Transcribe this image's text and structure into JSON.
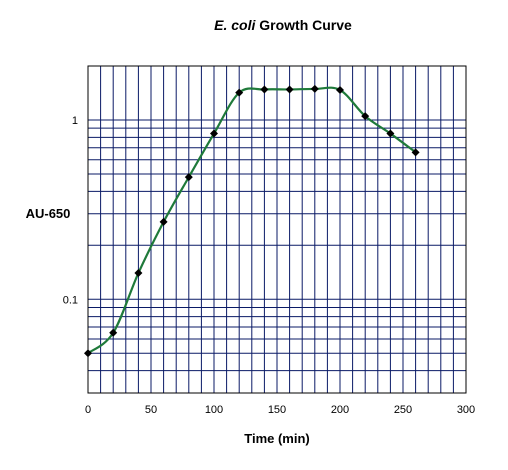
{
  "chart_data": {
    "type": "scatter",
    "title_italic": "E. coli",
    "title_rest": " Growth Curve",
    "xlabel": "Time (min)",
    "ylabel": "AU-650",
    "xlim": [
      0,
      300
    ],
    "ylim": [
      0.03,
      2
    ],
    "yscale": "log",
    "x_ticks": [
      "0",
      "50",
      "100",
      "150",
      "200",
      "250",
      "300"
    ],
    "y_tick_labels": [
      {
        "value": 0.1,
        "label": "0.1"
      },
      {
        "value": 1,
        "label": "1"
      }
    ],
    "grid": true,
    "series": [
      {
        "marker": "diamond",
        "line": "smooth",
        "x": [
          0,
          20,
          40,
          60,
          80,
          100,
          120,
          140,
          160,
          180,
          200,
          220,
          240,
          260
        ],
        "y": [
          0.05,
          0.065,
          0.14,
          0.27,
          0.48,
          0.84,
          1.42,
          1.48,
          1.48,
          1.49,
          1.47,
          1.05,
          0.84,
          0.66
        ]
      }
    ],
    "colors": {
      "grid": "#0a1a66",
      "line": "#1f7a3a",
      "marker": "#000000",
      "axis": "#000000"
    }
  }
}
